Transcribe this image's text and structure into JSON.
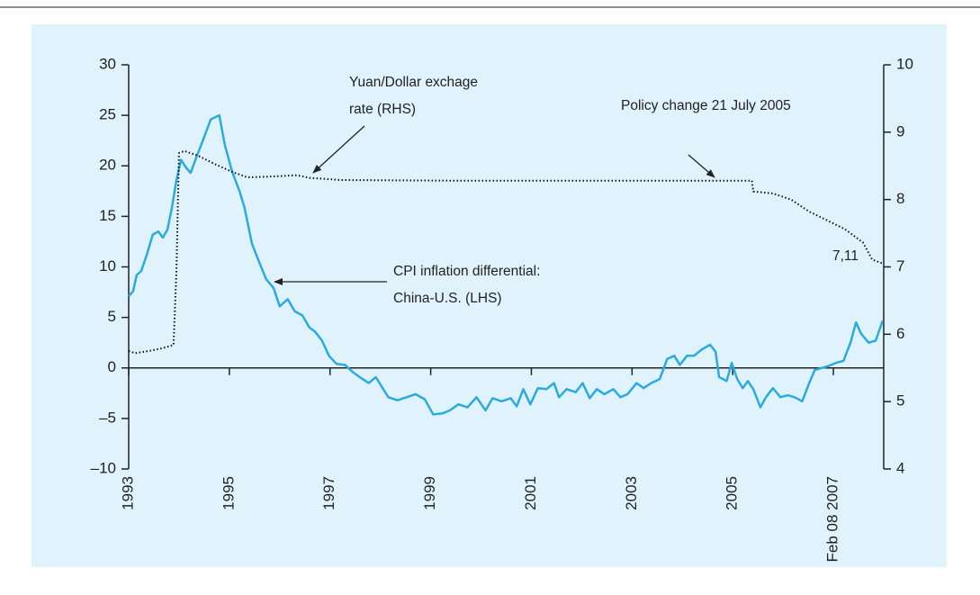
{
  "chart_data": {
    "type": "line",
    "xlim": [
      1993,
      2008
    ],
    "xticks": [
      1993,
      1995,
      1997,
      1999,
      2001,
      2003,
      2005,
      {
        "value": 2007,
        "label": "Feb 08 2007"
      }
    ],
    "ylim": [
      -10,
      30
    ],
    "yticks": [
      30,
      25,
      20,
      15,
      10,
      5,
      0,
      {
        "value": -5,
        "label": "–5"
      },
      {
        "value": -10,
        "label": "–10"
      }
    ],
    "y2lim": [
      4,
      10
    ],
    "y2ticks": [
      10,
      9,
      8,
      7,
      6,
      5,
      4
    ],
    "series": [
      {
        "color": "#29abe2",
        "axis": "y",
        "dash": "solid",
        "x": [
          1993.0,
          1993.09,
          1993.16,
          1993.25,
          1993.36,
          1993.48,
          1993.59,
          1993.68,
          1993.77,
          1993.86,
          1993.95,
          1994.04,
          1994.13,
          1994.23,
          1994.34,
          1994.48,
          1994.63,
          1994.8,
          1994.91,
          1995.05,
          1995.2,
          1995.3,
          1995.45,
          1995.59,
          1995.73,
          1995.88,
          1996.0,
          1996.16,
          1996.3,
          1996.45,
          1996.59,
          1996.7,
          1996.84,
          1996.98,
          1997.13,
          1997.3,
          1997.45,
          1997.59,
          1997.77,
          1997.91,
          1998.02,
          1998.16,
          1998.34,
          1998.52,
          1998.7,
          1998.88,
          1999.05,
          1999.23,
          1999.38,
          1999.55,
          1999.73,
          1999.91,
          2000.09,
          2000.23,
          2000.41,
          2000.59,
          2000.71,
          2000.84,
          2000.98,
          2001.13,
          2001.3,
          2001.45,
          2001.55,
          2001.7,
          2001.88,
          2002.02,
          2002.16,
          2002.3,
          2002.45,
          2002.63,
          2002.77,
          2002.91,
          2003.09,
          2003.23,
          2003.38,
          2003.55,
          2003.7,
          2003.84,
          2003.95,
          2004.09,
          2004.23,
          2004.38,
          2004.55,
          2004.66,
          2004.73,
          2004.88,
          2004.98,
          2005.09,
          2005.2,
          2005.3,
          2005.41,
          2005.55,
          2005.66,
          2005.8,
          2005.95,
          2006.09,
          2006.23,
          2006.38,
          2006.52,
          2006.63,
          2006.77,
          2006.91,
          2007.05,
          2007.2,
          2007.34,
          2007.45,
          2007.55,
          2007.7,
          2007.84,
          2007.98
        ],
        "values": [
          7.1,
          7.6,
          9.2,
          9.6,
          11.2,
          13.2,
          13.5,
          12.9,
          13.7,
          15.9,
          18.6,
          20.6,
          19.9,
          19.3,
          20.8,
          22.6,
          24.6,
          25.0,
          22.1,
          19.5,
          17.5,
          15.9,
          12.3,
          10.5,
          8.8,
          7.9,
          6.1,
          6.8,
          5.6,
          5.2,
          4.0,
          3.6,
          2.7,
          1.2,
          0.4,
          0.3,
          -0.4,
          -0.9,
          -1.5,
          -0.9,
          -1.8,
          -2.9,
          -3.2,
          -2.9,
          -2.6,
          -3.1,
          -4.6,
          -4.5,
          -4.2,
          -3.6,
          -3.9,
          -2.9,
          -4.2,
          -3.0,
          -3.3,
          -3.0,
          -3.8,
          -2.1,
          -3.6,
          -2.0,
          -2.1,
          -1.5,
          -2.9,
          -2.1,
          -2.4,
          -1.5,
          -3.0,
          -2.1,
          -2.6,
          -2.1,
          -2.9,
          -2.6,
          -1.5,
          -2.0,
          -1.5,
          -1.1,
          0.9,
          1.2,
          0.3,
          1.2,
          1.2,
          1.8,
          2.3,
          1.6,
          -0.9,
          -1.3,
          0.5,
          -1.1,
          -2.0,
          -1.3,
          -2.1,
          -3.9,
          -2.9,
          -2.0,
          -2.9,
          -2.7,
          -2.9,
          -3.3,
          -1.5,
          -0.2,
          0.0,
          0.2,
          0.5,
          0.7,
          2.5,
          4.5,
          3.4,
          2.5,
          2.7,
          4.7
        ]
      },
      {
        "color": "#111111",
        "axis": "y2",
        "dash": "dotted",
        "x": [
          1993.0,
          1993.13,
          1993.39,
          1993.66,
          1993.89,
          1993.95,
          1994.0,
          1994.11,
          1994.38,
          1994.73,
          1995.09,
          1995.36,
          1995.8,
          1996.34,
          1996.61,
          1997.23,
          1999.38,
          2002.95,
          2005.38,
          2005.41,
          2005.8,
          2006.16,
          2006.52,
          2006.88,
          2007.23,
          2007.59,
          2007.77,
          2007.98
        ],
        "values": [
          5.75,
          5.72,
          5.75,
          5.79,
          5.84,
          6.95,
          8.69,
          8.72,
          8.65,
          8.52,
          8.4,
          8.33,
          8.34,
          8.36,
          8.32,
          8.29,
          8.28,
          8.28,
          8.28,
          8.12,
          8.09,
          8.0,
          7.82,
          7.69,
          7.56,
          7.36,
          7.11,
          7.05
        ]
      }
    ],
    "annotations": [
      {
        "lines": [
          "Yuan/Dollar exchage",
          "rate (RHS)"
        ]
      },
      {
        "lines": [
          "Policy change 21 July 2005"
        ]
      },
      {
        "lines": [
          "CPI inflation differential:",
          "China-U.S. (LHS)"
        ]
      },
      {
        "lines": [
          "7,11"
        ]
      }
    ]
  }
}
